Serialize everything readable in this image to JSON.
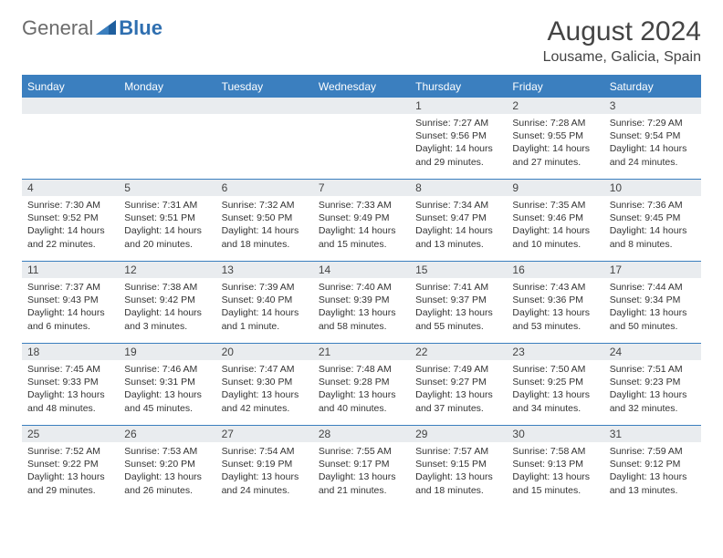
{
  "brand": {
    "general": "General",
    "blue": "Blue"
  },
  "header": {
    "month_title": "August 2024",
    "location": "Lousame, Galicia, Spain"
  },
  "colors": {
    "accent": "#3b7fbf",
    "header_bg": "#3b7fbf",
    "daynum_bg": "#e9ecef",
    "text": "#333333",
    "background": "#ffffff"
  },
  "day_labels": [
    "Sunday",
    "Monday",
    "Tuesday",
    "Wednesday",
    "Thursday",
    "Friday",
    "Saturday"
  ],
  "weeks": [
    [
      {
        "num": "",
        "sunrise": "",
        "sunset": "",
        "daylight": ""
      },
      {
        "num": "",
        "sunrise": "",
        "sunset": "",
        "daylight": ""
      },
      {
        "num": "",
        "sunrise": "",
        "sunset": "",
        "daylight": ""
      },
      {
        "num": "",
        "sunrise": "",
        "sunset": "",
        "daylight": ""
      },
      {
        "num": "1",
        "sunrise": "Sunrise: 7:27 AM",
        "sunset": "Sunset: 9:56 PM",
        "daylight": "Daylight: 14 hours and 29 minutes."
      },
      {
        "num": "2",
        "sunrise": "Sunrise: 7:28 AM",
        "sunset": "Sunset: 9:55 PM",
        "daylight": "Daylight: 14 hours and 27 minutes."
      },
      {
        "num": "3",
        "sunrise": "Sunrise: 7:29 AM",
        "sunset": "Sunset: 9:54 PM",
        "daylight": "Daylight: 14 hours and 24 minutes."
      }
    ],
    [
      {
        "num": "4",
        "sunrise": "Sunrise: 7:30 AM",
        "sunset": "Sunset: 9:52 PM",
        "daylight": "Daylight: 14 hours and 22 minutes."
      },
      {
        "num": "5",
        "sunrise": "Sunrise: 7:31 AM",
        "sunset": "Sunset: 9:51 PM",
        "daylight": "Daylight: 14 hours and 20 minutes."
      },
      {
        "num": "6",
        "sunrise": "Sunrise: 7:32 AM",
        "sunset": "Sunset: 9:50 PM",
        "daylight": "Daylight: 14 hours and 18 minutes."
      },
      {
        "num": "7",
        "sunrise": "Sunrise: 7:33 AM",
        "sunset": "Sunset: 9:49 PM",
        "daylight": "Daylight: 14 hours and 15 minutes."
      },
      {
        "num": "8",
        "sunrise": "Sunrise: 7:34 AM",
        "sunset": "Sunset: 9:47 PM",
        "daylight": "Daylight: 14 hours and 13 minutes."
      },
      {
        "num": "9",
        "sunrise": "Sunrise: 7:35 AM",
        "sunset": "Sunset: 9:46 PM",
        "daylight": "Daylight: 14 hours and 10 minutes."
      },
      {
        "num": "10",
        "sunrise": "Sunrise: 7:36 AM",
        "sunset": "Sunset: 9:45 PM",
        "daylight": "Daylight: 14 hours and 8 minutes."
      }
    ],
    [
      {
        "num": "11",
        "sunrise": "Sunrise: 7:37 AM",
        "sunset": "Sunset: 9:43 PM",
        "daylight": "Daylight: 14 hours and 6 minutes."
      },
      {
        "num": "12",
        "sunrise": "Sunrise: 7:38 AM",
        "sunset": "Sunset: 9:42 PM",
        "daylight": "Daylight: 14 hours and 3 minutes."
      },
      {
        "num": "13",
        "sunrise": "Sunrise: 7:39 AM",
        "sunset": "Sunset: 9:40 PM",
        "daylight": "Daylight: 14 hours and 1 minute."
      },
      {
        "num": "14",
        "sunrise": "Sunrise: 7:40 AM",
        "sunset": "Sunset: 9:39 PM",
        "daylight": "Daylight: 13 hours and 58 minutes."
      },
      {
        "num": "15",
        "sunrise": "Sunrise: 7:41 AM",
        "sunset": "Sunset: 9:37 PM",
        "daylight": "Daylight: 13 hours and 55 minutes."
      },
      {
        "num": "16",
        "sunrise": "Sunrise: 7:43 AM",
        "sunset": "Sunset: 9:36 PM",
        "daylight": "Daylight: 13 hours and 53 minutes."
      },
      {
        "num": "17",
        "sunrise": "Sunrise: 7:44 AM",
        "sunset": "Sunset: 9:34 PM",
        "daylight": "Daylight: 13 hours and 50 minutes."
      }
    ],
    [
      {
        "num": "18",
        "sunrise": "Sunrise: 7:45 AM",
        "sunset": "Sunset: 9:33 PM",
        "daylight": "Daylight: 13 hours and 48 minutes."
      },
      {
        "num": "19",
        "sunrise": "Sunrise: 7:46 AM",
        "sunset": "Sunset: 9:31 PM",
        "daylight": "Daylight: 13 hours and 45 minutes."
      },
      {
        "num": "20",
        "sunrise": "Sunrise: 7:47 AM",
        "sunset": "Sunset: 9:30 PM",
        "daylight": "Daylight: 13 hours and 42 minutes."
      },
      {
        "num": "21",
        "sunrise": "Sunrise: 7:48 AM",
        "sunset": "Sunset: 9:28 PM",
        "daylight": "Daylight: 13 hours and 40 minutes."
      },
      {
        "num": "22",
        "sunrise": "Sunrise: 7:49 AM",
        "sunset": "Sunset: 9:27 PM",
        "daylight": "Daylight: 13 hours and 37 minutes."
      },
      {
        "num": "23",
        "sunrise": "Sunrise: 7:50 AM",
        "sunset": "Sunset: 9:25 PM",
        "daylight": "Daylight: 13 hours and 34 minutes."
      },
      {
        "num": "24",
        "sunrise": "Sunrise: 7:51 AM",
        "sunset": "Sunset: 9:23 PM",
        "daylight": "Daylight: 13 hours and 32 minutes."
      }
    ],
    [
      {
        "num": "25",
        "sunrise": "Sunrise: 7:52 AM",
        "sunset": "Sunset: 9:22 PM",
        "daylight": "Daylight: 13 hours and 29 minutes."
      },
      {
        "num": "26",
        "sunrise": "Sunrise: 7:53 AM",
        "sunset": "Sunset: 9:20 PM",
        "daylight": "Daylight: 13 hours and 26 minutes."
      },
      {
        "num": "27",
        "sunrise": "Sunrise: 7:54 AM",
        "sunset": "Sunset: 9:19 PM",
        "daylight": "Daylight: 13 hours and 24 minutes."
      },
      {
        "num": "28",
        "sunrise": "Sunrise: 7:55 AM",
        "sunset": "Sunset: 9:17 PM",
        "daylight": "Daylight: 13 hours and 21 minutes."
      },
      {
        "num": "29",
        "sunrise": "Sunrise: 7:57 AM",
        "sunset": "Sunset: 9:15 PM",
        "daylight": "Daylight: 13 hours and 18 minutes."
      },
      {
        "num": "30",
        "sunrise": "Sunrise: 7:58 AM",
        "sunset": "Sunset: 9:13 PM",
        "daylight": "Daylight: 13 hours and 15 minutes."
      },
      {
        "num": "31",
        "sunrise": "Sunrise: 7:59 AM",
        "sunset": "Sunset: 9:12 PM",
        "daylight": "Daylight: 13 hours and 13 minutes."
      }
    ]
  ]
}
